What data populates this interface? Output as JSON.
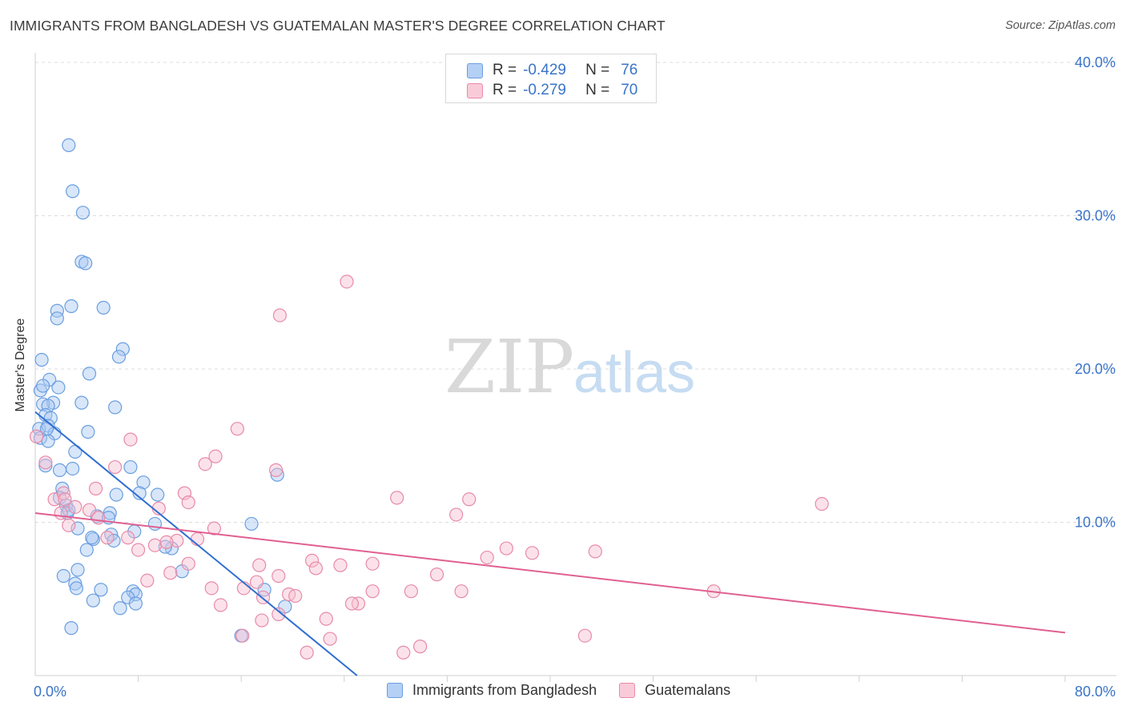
{
  "header": {
    "title": "IMMIGRANTS FROM BANGLADESH VS GUATEMALAN MASTER'S DEGREE CORRELATION CHART",
    "source": "Source: ZipAtlas.com"
  },
  "watermark": {
    "part1": "ZIP",
    "part2": "atlas"
  },
  "legend": {
    "r_label": "R =",
    "n_label": "N =",
    "series": [
      {
        "name": "Immigrants from Bangladesh",
        "r": "-0.429",
        "n": "76"
      },
      {
        "name": "Guatemalans",
        "r": "-0.279",
        "n": "70"
      }
    ]
  },
  "colors": {
    "blue_fill": "#a9c8f2",
    "blue_stroke": "#6a9ee0",
    "blue_line": "#2f6fd0",
    "pink_fill": "#f6bfd0",
    "pink_stroke": "#e88aa8",
    "pink_line": "#e06090",
    "tick_label": "#3a74c8",
    "grid": "#dcdcdc"
  },
  "chart_data": {
    "type": "scatter",
    "title": "IMMIGRANTS FROM BANGLADESH VS GUATEMALAN MASTER'S DEGREE CORRELATION CHART",
    "xlabel": "",
    "ylabel": "Master's Degree",
    "xlim": [
      0,
      80
    ],
    "ylim": [
      0,
      40
    ],
    "x_tick_labels": [
      {
        "value": 0,
        "label": "0.0%"
      },
      {
        "value": 80,
        "label": "80.0%"
      }
    ],
    "y_tick_labels": [
      {
        "value": 10,
        "label": "10.0%"
      },
      {
        "value": 20,
        "label": "20.0%"
      },
      {
        "value": 30,
        "label": "30.0%"
      },
      {
        "value": 40,
        "label": "40.0%"
      }
    ],
    "x_minor_ticks": [
      8,
      16,
      24,
      32,
      40,
      48,
      56,
      64,
      72,
      80
    ],
    "grid": true,
    "series": [
      {
        "name": "Immigrants from Bangladesh",
        "color": "blue",
        "trend": {
          "x0": 0,
          "y0": 17.2,
          "x1": 25,
          "y1": 0
        },
        "points": [
          [
            2.6,
            34.6
          ],
          [
            2.9,
            31.6
          ],
          [
            3.7,
            30.2
          ],
          [
            3.6,
            27.0
          ],
          [
            3.9,
            26.9
          ],
          [
            1.7,
            23.8
          ],
          [
            1.7,
            23.3
          ],
          [
            2.8,
            24.1
          ],
          [
            5.3,
            24.0
          ],
          [
            6.8,
            21.3
          ],
          [
            6.5,
            20.8
          ],
          [
            0.5,
            20.6
          ],
          [
            4.2,
            19.7
          ],
          [
            1.1,
            19.3
          ],
          [
            1.8,
            18.8
          ],
          [
            0.4,
            18.6
          ],
          [
            0.6,
            18.9
          ],
          [
            1.4,
            17.8
          ],
          [
            0.6,
            17.7
          ],
          [
            1.0,
            17.6
          ],
          [
            3.6,
            17.8
          ],
          [
            6.2,
            17.5
          ],
          [
            0.8,
            17.0
          ],
          [
            1.2,
            16.8
          ],
          [
            0.3,
            16.1
          ],
          [
            1.0,
            16.3
          ],
          [
            1.5,
            15.8
          ],
          [
            4.1,
            15.9
          ],
          [
            0.4,
            15.5
          ],
          [
            1.0,
            15.3
          ],
          [
            3.1,
            14.6
          ],
          [
            0.8,
            13.7
          ],
          [
            1.9,
            13.4
          ],
          [
            2.9,
            13.5
          ],
          [
            7.4,
            13.6
          ],
          [
            18.8,
            13.1
          ],
          [
            8.4,
            12.6
          ],
          [
            2.1,
            12.2
          ],
          [
            6.3,
            11.8
          ],
          [
            9.5,
            11.8
          ],
          [
            1.9,
            11.6
          ],
          [
            2.4,
            11.1
          ],
          [
            8.1,
            11.9
          ],
          [
            2.5,
            10.6
          ],
          [
            2.6,
            10.8
          ],
          [
            4.8,
            10.4
          ],
          [
            5.8,
            10.6
          ],
          [
            5.7,
            10.3
          ],
          [
            9.3,
            9.9
          ],
          [
            16.8,
            9.9
          ],
          [
            3.3,
            9.6
          ],
          [
            7.7,
            9.4
          ],
          [
            5.9,
            9.2
          ],
          [
            4.5,
            8.9
          ],
          [
            6.1,
            8.8
          ],
          [
            4.0,
            8.2
          ],
          [
            10.6,
            8.3
          ],
          [
            3.3,
            6.9
          ],
          [
            11.4,
            6.8
          ],
          [
            2.2,
            6.5
          ],
          [
            3.1,
            6.0
          ],
          [
            3.2,
            5.7
          ],
          [
            5.1,
            5.6
          ],
          [
            17.8,
            5.6
          ],
          [
            7.6,
            5.5
          ],
          [
            7.8,
            5.3
          ],
          [
            7.2,
            5.1
          ],
          [
            4.5,
            4.9
          ],
          [
            7.8,
            4.7
          ],
          [
            6.6,
            4.4
          ],
          [
            19.4,
            4.5
          ],
          [
            2.8,
            3.1
          ],
          [
            16.0,
            2.6
          ],
          [
            10.1,
            8.4
          ],
          [
            4.4,
            9.0
          ],
          [
            0.9,
            16.1
          ]
        ]
      },
      {
        "name": "Guatemalans",
        "color": "pink",
        "trend": {
          "x0": 0,
          "y0": 10.6,
          "x1": 80,
          "y1": 2.8
        },
        "points": [
          [
            0.1,
            15.6
          ],
          [
            0.8,
            13.9
          ],
          [
            7.4,
            15.4
          ],
          [
            15.7,
            16.1
          ],
          [
            24.2,
            25.7
          ],
          [
            19.0,
            23.5
          ],
          [
            13.2,
            13.8
          ],
          [
            14.0,
            14.3
          ],
          [
            18.7,
            13.4
          ],
          [
            6.2,
            13.6
          ],
          [
            4.7,
            12.2
          ],
          [
            11.6,
            11.9
          ],
          [
            11.9,
            11.3
          ],
          [
            28.1,
            11.6
          ],
          [
            33.7,
            11.5
          ],
          [
            61.1,
            11.2
          ],
          [
            1.5,
            11.5
          ],
          [
            2.2,
            11.9
          ],
          [
            2.3,
            11.5
          ],
          [
            3.1,
            11.0
          ],
          [
            4.2,
            10.8
          ],
          [
            9.6,
            10.9
          ],
          [
            32.7,
            10.5
          ],
          [
            2.0,
            10.6
          ],
          [
            4.9,
            10.3
          ],
          [
            2.6,
            9.8
          ],
          [
            13.9,
            9.6
          ],
          [
            7.2,
            9.0
          ],
          [
            5.6,
            9.0
          ],
          [
            11.0,
            8.8
          ],
          [
            9.3,
            8.5
          ],
          [
            10.2,
            8.7
          ],
          [
            12.6,
            8.9
          ],
          [
            8.0,
            8.2
          ],
          [
            36.6,
            8.3
          ],
          [
            38.6,
            8.0
          ],
          [
            43.5,
            8.1
          ],
          [
            35.1,
            7.7
          ],
          [
            11.9,
            7.3
          ],
          [
            21.5,
            7.5
          ],
          [
            26.2,
            7.3
          ],
          [
            17.4,
            7.2
          ],
          [
            23.7,
            7.2
          ],
          [
            21.8,
            7.0
          ],
          [
            10.5,
            6.7
          ],
          [
            31.2,
            6.6
          ],
          [
            8.7,
            6.2
          ],
          [
            18.9,
            6.5
          ],
          [
            17.2,
            6.1
          ],
          [
            16.2,
            5.7
          ],
          [
            13.7,
            5.7
          ],
          [
            26.2,
            5.5
          ],
          [
            29.2,
            5.5
          ],
          [
            33.1,
            5.5
          ],
          [
            52.7,
            5.5
          ],
          [
            19.7,
            5.3
          ],
          [
            17.7,
            5.1
          ],
          [
            20.2,
            5.2
          ],
          [
            25.1,
            4.7
          ],
          [
            24.6,
            4.7
          ],
          [
            14.4,
            4.6
          ],
          [
            18.9,
            4.0
          ],
          [
            17.6,
            3.6
          ],
          [
            22.6,
            3.7
          ],
          [
            16.1,
            2.6
          ],
          [
            22.9,
            2.4
          ],
          [
            42.7,
            2.6
          ],
          [
            29.9,
            1.9
          ],
          [
            21.1,
            1.5
          ],
          [
            28.6,
            1.5
          ]
        ]
      }
    ]
  }
}
